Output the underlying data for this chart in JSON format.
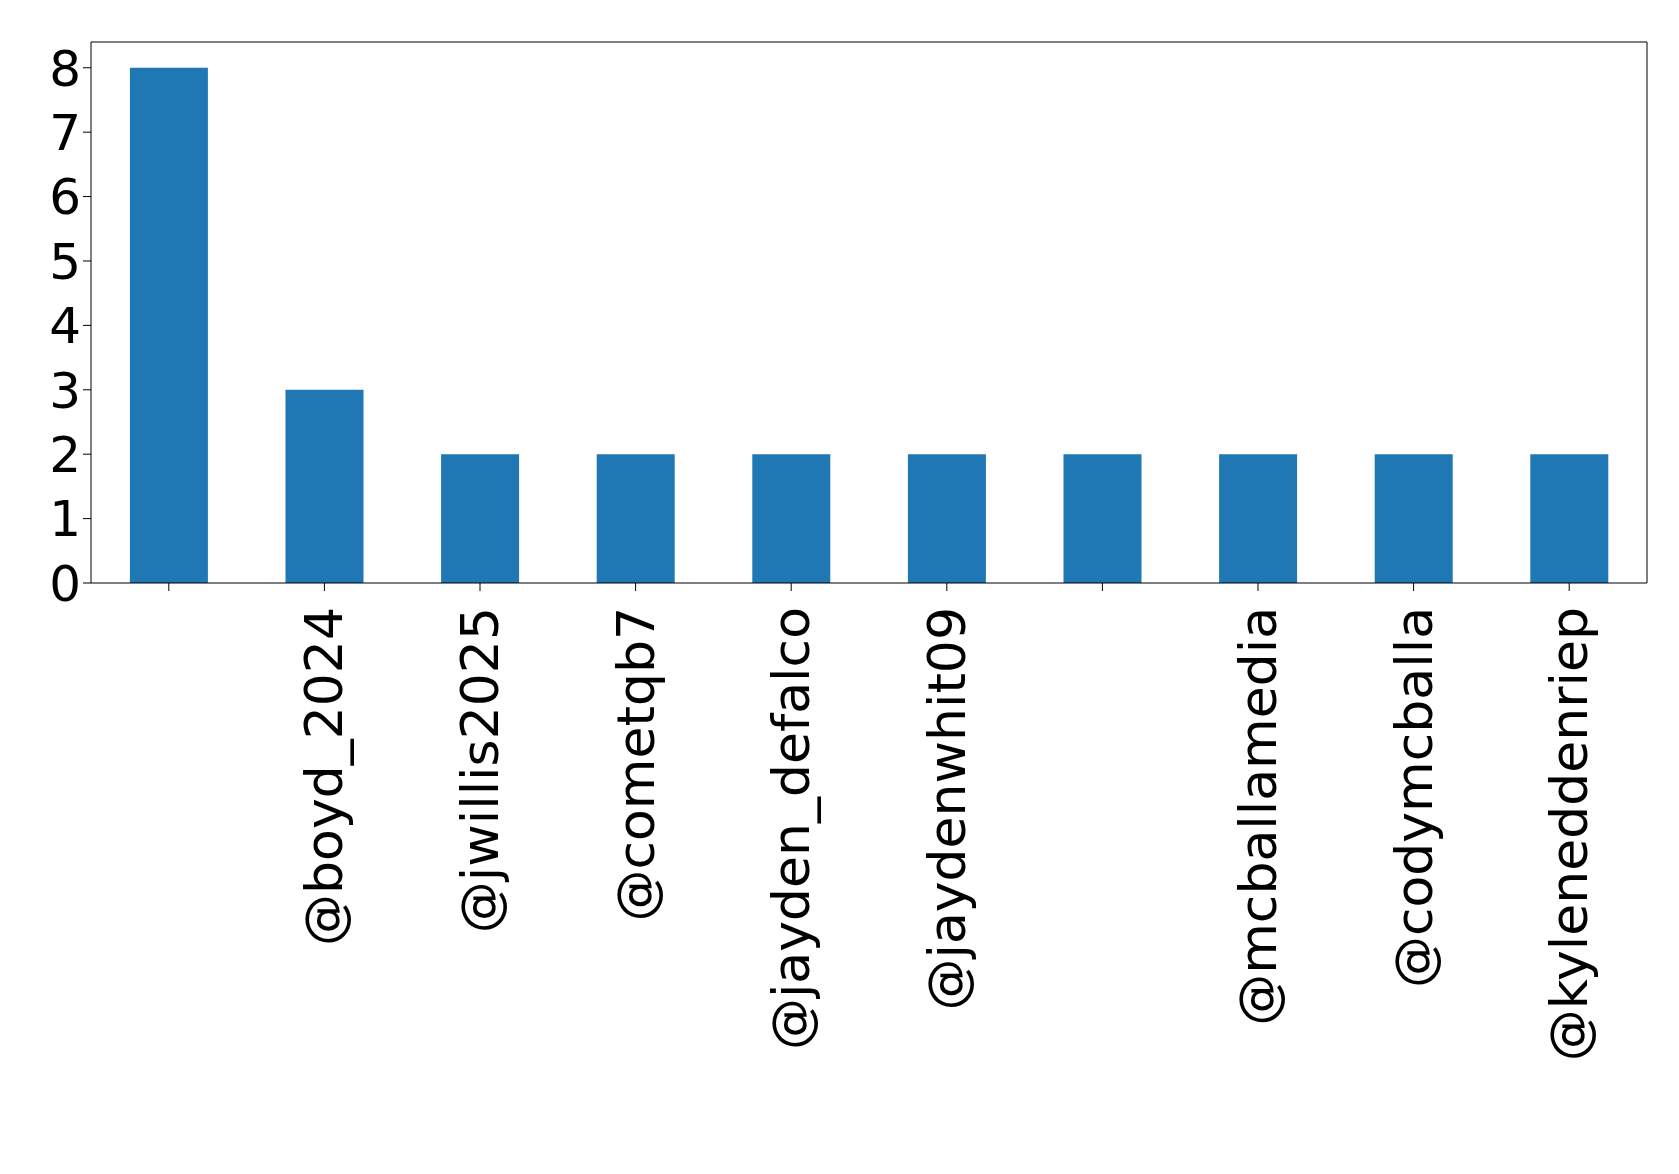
{
  "chart_data": {
    "type": "bar",
    "categories": [
      null,
      "@boyd_2024",
      "@jwillis2025",
      "@cometqb7",
      "@jayden_defalco",
      "@jaydenwhit09",
      null,
      "@mcballamedia",
      "@codymcballa",
      "@kyleneddenriep"
    ],
    "values": [
      8,
      3,
      2,
      2,
      2,
      2,
      2,
      2,
      2,
      2
    ],
    "color": "#1f77b4",
    "ylim": [
      0,
      8.4
    ],
    "yticks": [
      0,
      1,
      2,
      3,
      4,
      5,
      6,
      7,
      8
    ],
    "grid": false,
    "legend": false
  }
}
